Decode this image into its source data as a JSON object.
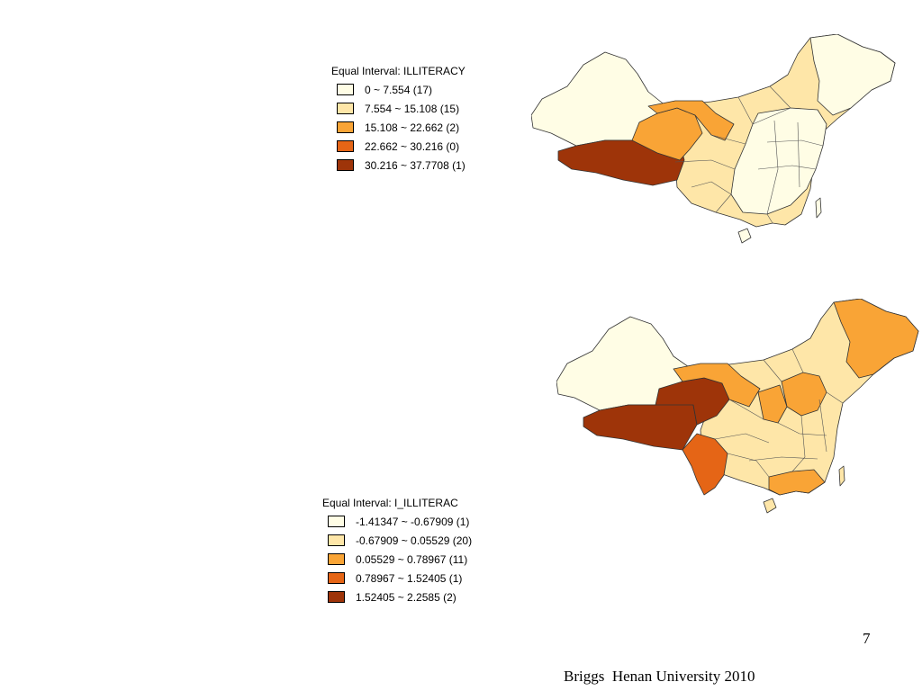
{
  "maps": [
    {
      "legend": {
        "title": "Equal Interval: ILLITERACY",
        "classes": [
          {
            "label": "0 ~ 7.554 (17)",
            "color": "#FFFDE5"
          },
          {
            "label": "7.554 ~ 15.108 (15)",
            "color": "#FEE6A8"
          },
          {
            "label": "15.108 ~ 22.662 (2)",
            "color": "#F9A436"
          },
          {
            "label": "22.662 ~ 30.216 (0)",
            "color": "#E56516"
          },
          {
            "label": "30.216 ~ 37.7708 (1)",
            "color": "#9E3409"
          }
        ]
      }
    },
    {
      "legend": {
        "title": "Equal Interval: I_ILLITERAC",
        "classes": [
          {
            "label": "-1.41347 ~ -0.67909 (1)",
            "color": "#FFFDE5"
          },
          {
            "label": "-0.67909 ~ 0.05529 (20)",
            "color": "#FEE6A8"
          },
          {
            "label": "0.05529 ~ 0.78967 (11)",
            "color": "#F9A436"
          },
          {
            "label": "0.78967 ~ 1.52405 (1)",
            "color": "#E56516"
          },
          {
            "label": "1.52405 ~ 2.2585 (2)",
            "color": "#9E3409"
          }
        ]
      }
    }
  ],
  "page_number": "7",
  "footer": "Briggs  Henan University 2010"
}
